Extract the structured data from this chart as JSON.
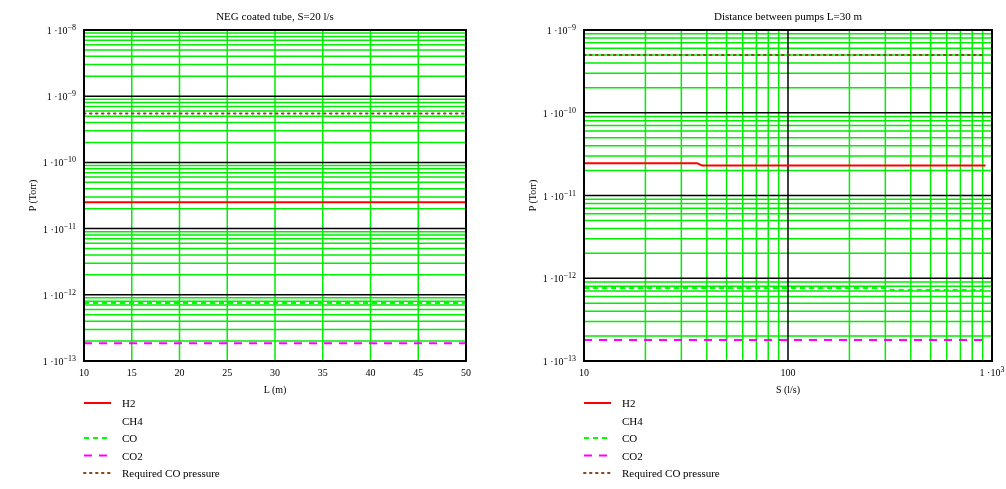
{
  "chart_data": [
    {
      "type": "line",
      "title": "NEG coated tube, S=20 l/s",
      "xlabel": "L (m)",
      "ylabel": "P (Torr)",
      "log": "y",
      "grid": true,
      "legend": "bottom",
      "xlim": [
        10,
        50
      ],
      "xticks": [
        10,
        15,
        20,
        25,
        30,
        35,
        40,
        45,
        50
      ],
      "ylim": [
        1e-13,
        1e-08
      ],
      "yticks": [
        {
          "value": 1e-13,
          "label": "1 ·10$^{−13}$"
        },
        {
          "value": 2e-13,
          "label": null
        },
        {
          "value": 3e-13,
          "label": null
        },
        {
          "value": 4e-13,
          "label": null
        },
        {
          "value": 5e-13,
          "label": null
        },
        {
          "value": 6e-13,
          "label": null
        },
        {
          "value": 7e-13,
          "label": null
        },
        {
          "value": 8e-13,
          "label": null
        },
        {
          "value": 9e-13,
          "label": null
        },
        {
          "value": 1e-12,
          "label": "1 ·10$^{−12}$"
        },
        {
          "value": 2e-12,
          "label": null
        },
        {
          "value": 3e-12,
          "label": null
        },
        {
          "value": 4e-12,
          "label": null
        },
        {
          "value": 5e-12,
          "label": null
        },
        {
          "value": 6e-12,
          "label": null
        },
        {
          "value": 7e-12,
          "label": null
        },
        {
          "value": 8e-12,
          "label": null
        },
        {
          "value": 9e-12,
          "label": null
        },
        {
          "value": 1e-11,
          "label": "1 ·10$^{−11}$"
        },
        {
          "value": 2e-11,
          "label": null
        },
        {
          "value": 3e-11,
          "label": null
        },
        {
          "value": 4e-11,
          "label": null
        },
        {
          "value": 5e-11,
          "label": null
        },
        {
          "value": 6e-11,
          "label": null
        },
        {
          "value": 7e-11,
          "label": null
        },
        {
          "value": 8e-11,
          "label": null
        },
        {
          "value": 9e-11,
          "label": null
        },
        {
          "value": 1e-10,
          "label": "1 ·10$^{−10}$"
        },
        {
          "value": 2e-10,
          "label": null
        },
        {
          "value": 3e-10,
          "label": null
        },
        {
          "value": 4e-10,
          "label": null
        },
        {
          "value": 5e-10,
          "label": null
        },
        {
          "value": 6e-10,
          "label": null
        },
        {
          "value": 7e-10,
          "label": null
        },
        {
          "value": 8e-10,
          "label": null
        },
        {
          "value": 9e-10,
          "label": null
        },
        {
          "value": 1e-09,
          "label": "1 ·10$^{−9}$"
        },
        {
          "value": 2e-09,
          "label": null
        },
        {
          "value": 3e-09,
          "label": null
        },
        {
          "value": 4e-09,
          "label": null
        },
        {
          "value": 5e-09,
          "label": null
        },
        {
          "value": 6e-09,
          "label": null
        },
        {
          "value": 7e-09,
          "label": null
        },
        {
          "value": 8e-09,
          "label": null
        },
        {
          "value": 9e-09,
          "label": null
        },
        {
          "value": 1e-08,
          "label": "1 ·10$^{−8}$"
        }
      ],
      "series": [
        {
          "name": "H2",
          "color": "#ff0000",
          "line_style": "solid",
          "x": [
            10,
            50
          ],
          "values": [
            2.5e-11,
            2.5e-11
          ]
        },
        {
          "name": "CH4"
        },
        {
          "name": "CO",
          "color": "#00ff00",
          "line_style": "dashed",
          "x": [
            10,
            50
          ],
          "values": [
            7.5e-13,
            7.5e-13
          ]
        },
        {
          "name": "CO2",
          "color": "#ff00ff",
          "line_style": "dashed",
          "x": [
            10,
            50
          ],
          "values": [
            1.85e-13,
            1.85e-13
          ]
        },
        {
          "name": "Required CO pressure",
          "color": "#8b4513",
          "line_style": "dotted",
          "x": [
            10,
            50
          ],
          "values": [
            5.5e-10,
            5.5e-10
          ]
        }
      ]
    },
    {
      "type": "line",
      "title": "Distance between pumps  L=30 m",
      "xlabel": "S (l/s)",
      "ylabel": "P (Torr)",
      "log": "xy",
      "grid": true,
      "legend": "bottom",
      "xlim": [
        10,
        1000
      ],
      "xticks": [
        10,
        {
          "value": 20,
          "label": null
        },
        {
          "value": 30,
          "label": null
        },
        {
          "value": 40,
          "label": null
        },
        {
          "value": 50,
          "label": null
        },
        {
          "value": 60,
          "label": null
        },
        {
          "value": 70,
          "label": null
        },
        {
          "value": 80,
          "label": null
        },
        {
          "value": 90,
          "label": null
        },
        100,
        {
          "value": 200,
          "label": null
        },
        {
          "value": 300,
          "label": null
        },
        {
          "value": 400,
          "label": null
        },
        {
          "value": 500,
          "label": null
        },
        {
          "value": 600,
          "label": null
        },
        {
          "value": 700,
          "label": null
        },
        {
          "value": 800,
          "label": null
        },
        {
          "value": 900,
          "label": null
        },
        {
          "value": 1000,
          "label": "1 ·10$^{3}$"
        }
      ],
      "ylim": [
        1e-13,
        1e-09
      ],
      "yticks": [
        {
          "value": 1e-13,
          "label": "1 ·10$^{−13}$"
        },
        {
          "value": 2e-13,
          "label": null
        },
        {
          "value": 3e-13,
          "label": null
        },
        {
          "value": 4e-13,
          "label": null
        },
        {
          "value": 5e-13,
          "label": null
        },
        {
          "value": 6e-13,
          "label": null
        },
        {
          "value": 7e-13,
          "label": null
        },
        {
          "value": 8e-13,
          "label": null
        },
        {
          "value": 9e-13,
          "label": null
        },
        {
          "value": 1e-12,
          "label": "1 ·10$^{−12}$"
        },
        {
          "value": 2e-12,
          "label": null
        },
        {
          "value": 3e-12,
          "label": null
        },
        {
          "value": 4e-12,
          "label": null
        },
        {
          "value": 5e-12,
          "label": null
        },
        {
          "value": 6e-12,
          "label": null
        },
        {
          "value": 7e-12,
          "label": null
        },
        {
          "value": 8e-12,
          "label": null
        },
        {
          "value": 9e-12,
          "label": null
        },
        {
          "value": 1e-11,
          "label": "1 ·10$^{−11}$"
        },
        {
          "value": 2e-11,
          "label": null
        },
        {
          "value": 3e-11,
          "label": null
        },
        {
          "value": 4e-11,
          "label": null
        },
        {
          "value": 5e-11,
          "label": null
        },
        {
          "value": 6e-11,
          "label": null
        },
        {
          "value": 7e-11,
          "label": null
        },
        {
          "value": 8e-11,
          "label": null
        },
        {
          "value": 9e-11,
          "label": null
        },
        {
          "value": 1e-10,
          "label": "1 ·10$^{−10}$"
        },
        {
          "value": 2e-10,
          "label": null
        },
        {
          "value": 3e-10,
          "label": null
        },
        {
          "value": 4e-10,
          "label": null
        },
        {
          "value": 5e-10,
          "label": null
        },
        {
          "value": 6e-10,
          "label": null
        },
        {
          "value": 7e-10,
          "label": null
        },
        {
          "value": 8e-10,
          "label": null
        },
        {
          "value": 9e-10,
          "label": null
        },
        {
          "value": 1e-09,
          "label": "1 ·10$^{−9}$"
        }
      ],
      "series": [
        {
          "name": "H2",
          "color": "#ff0000",
          "line_style": "solid",
          "x": [
            10,
            36,
            38,
            930
          ],
          "values": [
            2.45e-11,
            2.45e-11,
            2.3e-11,
            2.3e-11
          ]
        },
        {
          "name": "CH4"
        },
        {
          "name": "CO",
          "color": "#00ff00",
          "line_style": "dashed",
          "x": [
            10,
            300,
            320,
            910
          ],
          "values": [
            7.6e-13,
            7.6e-13,
            7.2e-13,
            7.2e-13
          ]
        },
        {
          "name": "CO2",
          "color": "#ff00ff",
          "line_style": "dashed",
          "x": [
            10,
            910
          ],
          "values": [
            1.8e-13,
            1.8e-13
          ]
        },
        {
          "name": "Required CO pressure",
          "color": "#8b4513",
          "line_style": "dotted",
          "x": [
            10,
            900
          ],
          "values": [
            5e-10,
            5e-10
          ]
        }
      ]
    }
  ]
}
